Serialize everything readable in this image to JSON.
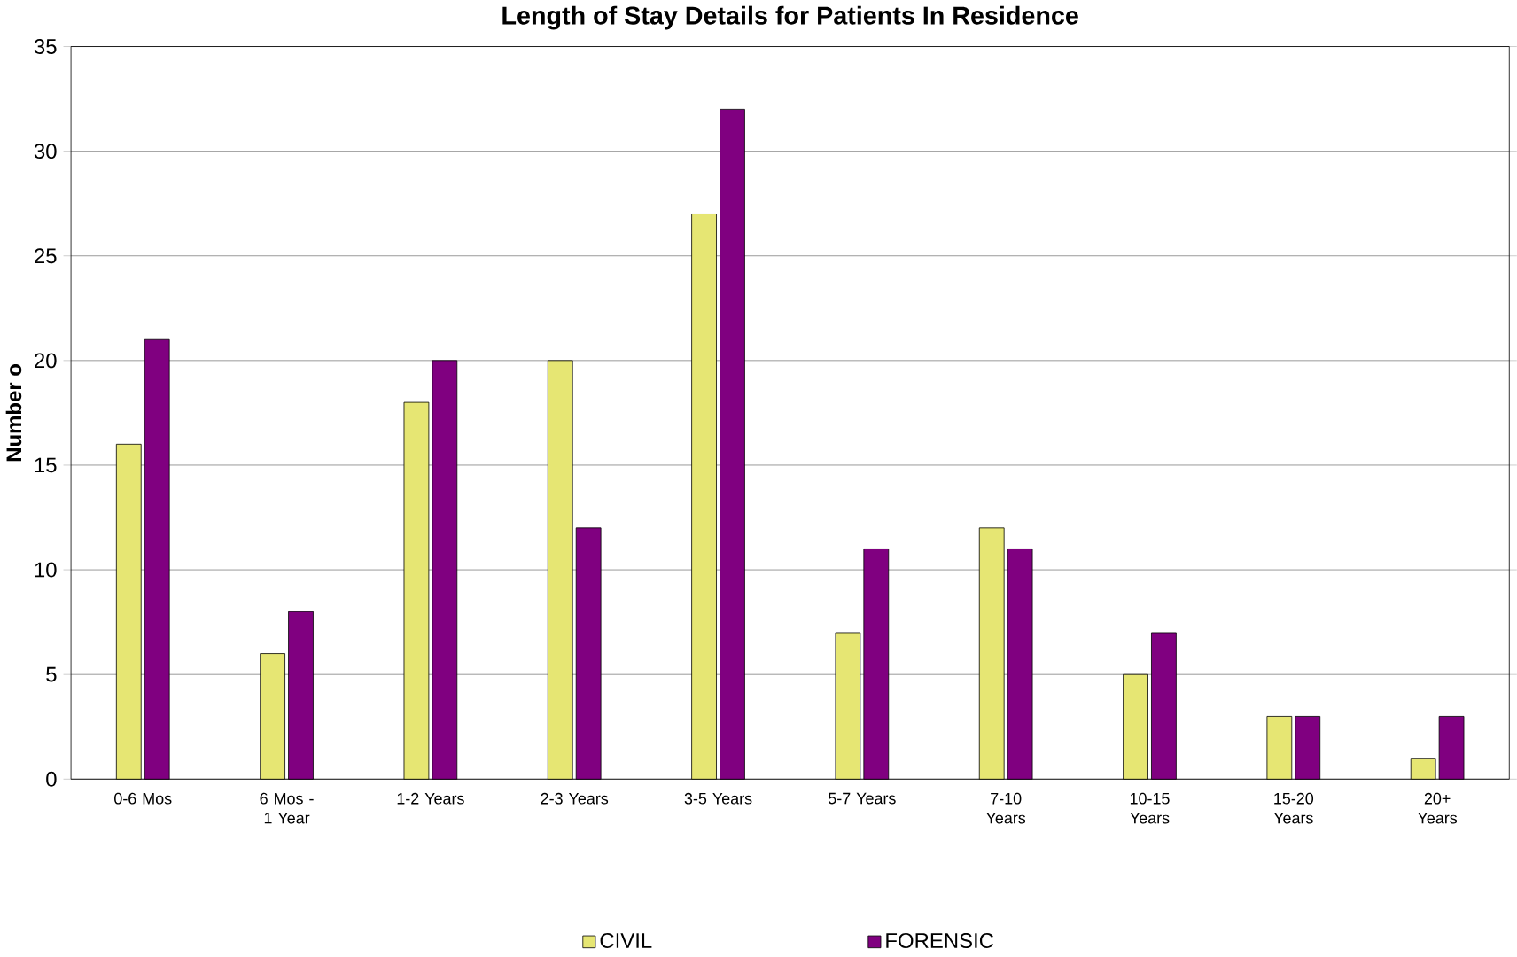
{
  "chart_data": {
    "type": "bar",
    "title": "Length of Stay Details for Patients In Residence",
    "ylabel": "Number o",
    "categories": [
      "0-6 Mos",
      "6 Mos - 1 Year",
      "1-2 Years",
      "2-3 Years",
      "3-5 Years",
      "5-7 Years",
      "7-10 Years",
      "10-15 Years",
      "15-20 Years",
      "20+ Years"
    ],
    "series": [
      {
        "name": "CIVIL",
        "color": "#e6e673",
        "values": [
          16,
          6,
          18,
          20,
          27,
          7,
          12,
          5,
          3,
          1
        ]
      },
      {
        "name": "FORENSIC",
        "color": "#800080",
        "values": [
          21,
          8,
          20,
          12,
          32,
          11,
          11,
          7,
          3,
          3
        ]
      }
    ],
    "ylim": [
      0,
      35
    ],
    "yticks": [
      0,
      5,
      10,
      15,
      20,
      25,
      30,
      35
    ],
    "grid": "y",
    "legend": "bottom"
  }
}
